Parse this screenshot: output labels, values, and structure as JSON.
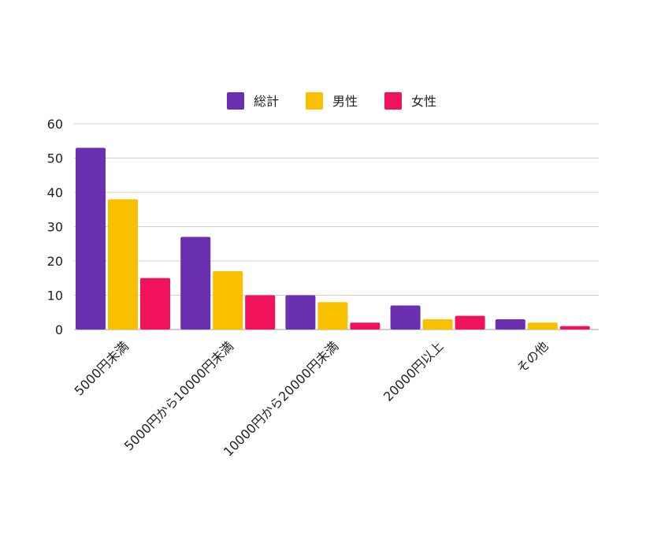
{
  "chart_data": {
    "type": "bar",
    "title": "",
    "xlabel": "",
    "ylabel": "",
    "categories": [
      "5000円未満",
      "5000円から10000円未満",
      "10000円から20000円未満",
      "20000円以上",
      "その他"
    ],
    "series": [
      {
        "name": "総計",
        "color": "#6a30b0",
        "values": [
          53,
          27,
          10,
          7,
          3
        ]
      },
      {
        "name": "男性",
        "color": "#f9c000",
        "values": [
          38,
          17,
          8,
          3,
          2
        ]
      },
      {
        "name": "女性",
        "color": "#f0125a",
        "values": [
          15,
          10,
          2,
          4,
          1
        ]
      }
    ],
    "ylim": [
      0,
      60
    ],
    "yticks": [
      "0",
      "10",
      "20",
      "30",
      "40",
      "50",
      "60"
    ],
    "grid": true,
    "legend_position": "top-center"
  }
}
